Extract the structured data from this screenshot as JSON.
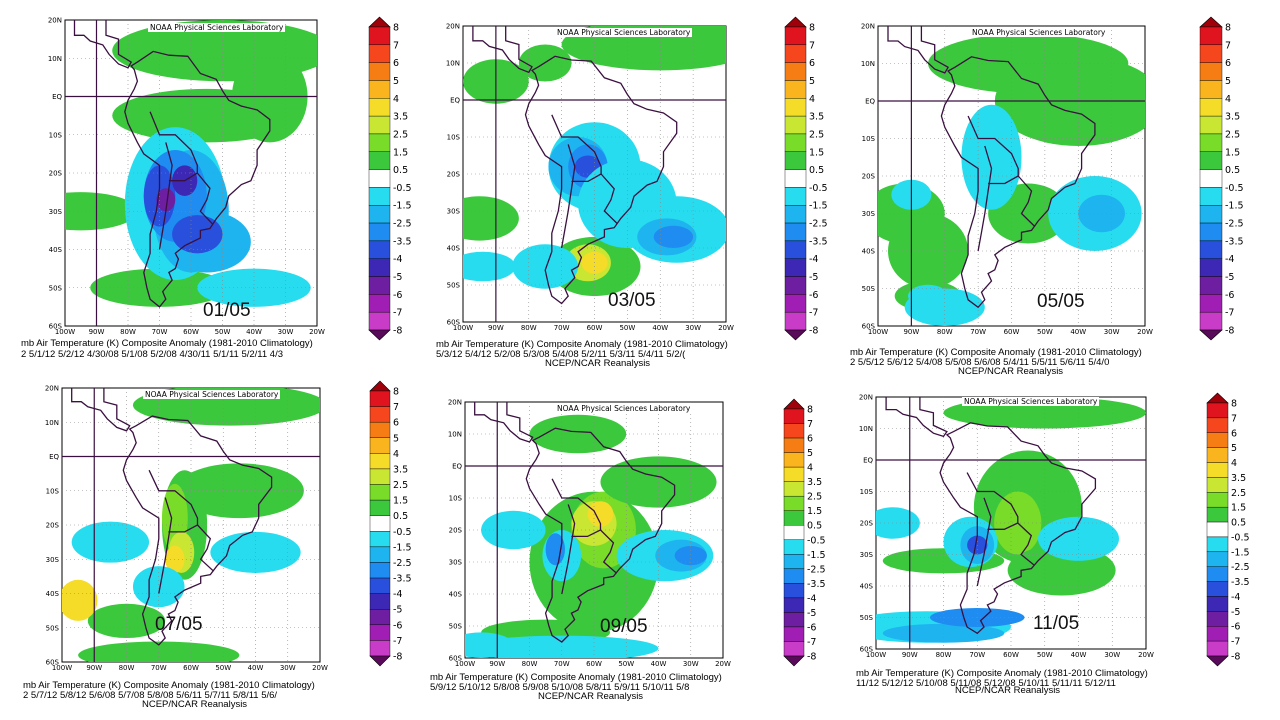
{
  "credit": "NOAA Physical Sciences Laboratory",
  "caption_title": "mb Air Temperature (K) Composite Anomaly (1981-2010 Climatology)",
  "source": "NCEP/NCAR Reanalysis",
  "axes": {
    "lat_labels": [
      "20N",
      "10N",
      "EQ",
      "10S",
      "20S",
      "30S",
      "40S",
      "50S",
      "60S"
    ],
    "lon_labels": [
      "100W",
      "90W",
      "80W",
      "70W",
      "60W",
      "50W",
      "40W",
      "30W",
      "20W"
    ]
  },
  "colorbar": {
    "labels": [
      "8",
      "7",
      "6",
      "5",
      "4",
      "3.5",
      "2.5",
      "1.5",
      "0.5",
      "-0.5",
      "-1.5",
      "-2.5",
      "-3.5",
      "-4",
      "-5",
      "-6",
      "-7",
      "-8"
    ],
    "colors": [
      "#a0000a",
      "#e0141e",
      "#f5461e",
      "#f57d14",
      "#fab41e",
      "#f5dc28",
      "#c8e632",
      "#78dc28",
      "#3cc83c",
      "#ffffff",
      "#28dcf0",
      "#1eb4f0",
      "#1e8cf0",
      "#2850dc",
      "#3c28b4",
      "#6e1ea0",
      "#a01eb4",
      "#c83cc8",
      "#5a0a5a"
    ],
    "color_meanings": {
      "warm": "#f5dc28",
      "cold": "#3c28b4",
      "neutral": "#ffffff"
    }
  },
  "panels": [
    {
      "date": "01/05",
      "caption_dates": "2 5/1/12 5/2/12 4/30/08 5/1/08 5/2/08 4/30/11 5/1/11 5/2/11 4/3",
      "show_source": false
    },
    {
      "date": "03/05",
      "caption_dates": "5/3/12 5/4/12 5/2/08 5/3/08 5/4/08 5/2/11 5/3/11 5/4/11 5/2/(",
      "show_source": true
    },
    {
      "date": "05/05",
      "caption_dates": "2 5/5/12 5/6/12 5/4/08 5/5/08 5/6/08 5/4/11 5/5/11 5/6/11 5/4/0",
      "show_source": true
    },
    {
      "date": "07/05",
      "caption_dates": "2 5/7/12 5/8/12 5/6/08 5/7/08 5/8/08 5/6/11 5/7/11 5/8/11 5/6/",
      "show_source": true
    },
    {
      "date": "09/05",
      "caption_dates": "5/9/12 5/10/12 5/8/08 5/9/08 5/10/08 5/8/11 5/9/11 5/10/11 5/8",
      "show_source": true
    },
    {
      "date": "11/05",
      "caption_dates": "11/12 5/12/12 5/10/08 5/11/08 5/12/08 5/10/11 5/11/11 5/12/11",
      "show_source": true
    }
  ]
}
